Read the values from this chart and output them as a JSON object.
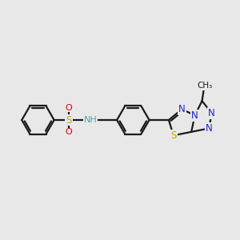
{
  "bg_color": "#e8e8e8",
  "bond_color": "#1a1a1a",
  "N_color": "#2222cc",
  "S_color": "#bbaa00",
  "O_color": "#dd0000",
  "NH_color": "#44aaaa",
  "line_width": 1.6,
  "figsize": [
    3.0,
    3.0
  ],
  "dpi": 100,
  "xlim": [
    0,
    10
  ],
  "ylim": [
    2,
    8
  ]
}
